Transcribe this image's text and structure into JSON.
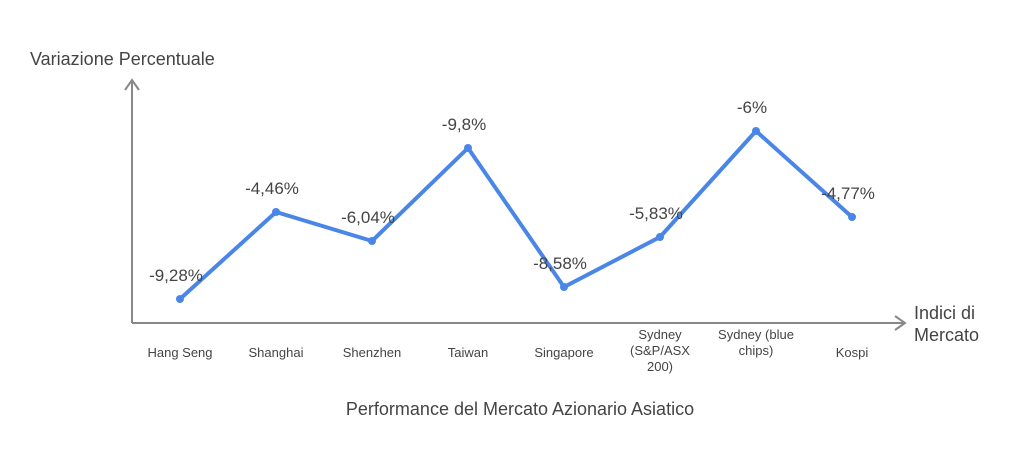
{
  "chart_data": {
    "type": "line",
    "title": "Performance del Mercato Azionario Asiatico",
    "xlabel": "Indici di Mercato",
    "ylabel": "Variazione Percentuale",
    "categories": [
      "Hang Seng",
      "Shanghai",
      "Shenzhen",
      "Taiwan",
      "Singapore",
      "Sydney (S&P/ASX 200)",
      "Sydney (blue chips)",
      "Kospi"
    ],
    "category_lines": [
      [
        "Hang Seng"
      ],
      [
        "Shanghai"
      ],
      [
        "Shenzhen"
      ],
      [
        "Taiwan"
      ],
      [
        "Singapore"
      ],
      [
        "Sydney",
        "(S&P/ASX",
        "200)"
      ],
      [
        "Sydney (blue",
        "chips)"
      ],
      [
        "Kospi"
      ]
    ],
    "values": [
      -9.28,
      -4.46,
      -6.04,
      -9.8,
      -8.58,
      -5.83,
      -6,
      -4.77
    ],
    "data_labels": [
      "-9,28%",
      "-4,46%",
      "-6,04%",
      "-9,8%",
      "-8,58%",
      "-5,83%",
      "-6%",
      "-4,77%"
    ],
    "grid": false,
    "colors": {
      "line": "#4a86e8",
      "axis": "#888888",
      "text": "#444444"
    }
  }
}
